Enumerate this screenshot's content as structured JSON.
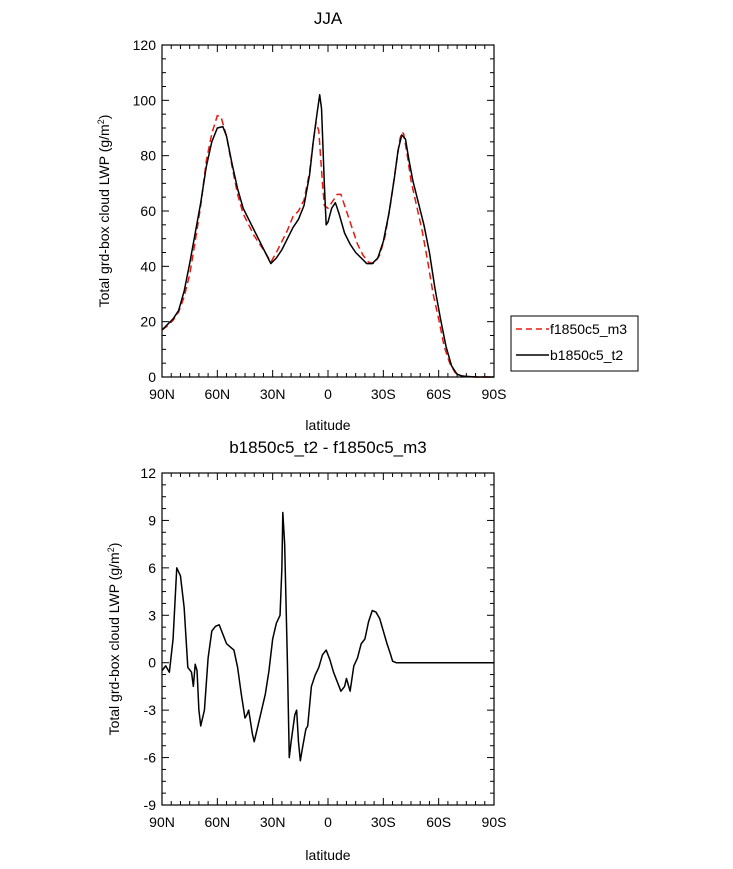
{
  "chart_data": [
    {
      "type": "line",
      "title": "JJA",
      "xlabel": "latitude",
      "ylabel_main": "Total grd-box cloud LWP (g/m",
      "ylabel_sup": "2",
      "ylabel_tail": ")",
      "xlim": [
        90,
        -90
      ],
      "ylim": [
        0,
        120
      ],
      "xticks": [
        90,
        60,
        30,
        0,
        -30,
        -60,
        -90
      ],
      "xtick_labels": [
        "90N",
        "60N",
        "30N",
        "0",
        "30S",
        "60S",
        "90S"
      ],
      "yticks": [
        0,
        20,
        40,
        60,
        80,
        100,
        120
      ],
      "ytick_labels": [
        "0",
        "20",
        "40",
        "60",
        "80",
        "100",
        "120"
      ],
      "legend": [
        "f1850c5_m3",
        "b1850c5_t2"
      ],
      "series": [
        {
          "name": "f1850c5_m3",
          "color": "#e8190f",
          "dash": "dashed",
          "points": [
            [
              90,
              17
            ],
            [
              87,
              18.5
            ],
            [
              84,
              20.5
            ],
            [
              81,
              23.5
            ],
            [
              78,
              29
            ],
            [
              75,
              37
            ],
            [
              72,
              49
            ],
            [
              69,
              62
            ],
            [
              66,
              78
            ],
            [
              63,
              88
            ],
            [
              60,
              94.5
            ],
            [
              58,
              94
            ],
            [
              55,
              87
            ],
            [
              52,
              76
            ],
            [
              49,
              66
            ],
            [
              46,
              59
            ],
            [
              43,
              55
            ],
            [
              40,
              51
            ],
            [
              37,
              48
            ],
            [
              34,
              45
            ],
            [
              31,
              41.5
            ],
            [
              28,
              45
            ],
            [
              25,
              49
            ],
            [
              22,
              53
            ],
            [
              19,
              58
            ],
            [
              16,
              60
            ],
            [
              13,
              64
            ],
            [
              10,
              74
            ],
            [
              8,
              85
            ],
            [
              6.5,
              92
            ],
            [
              5,
              89
            ],
            [
              3,
              70
            ],
            [
              2,
              62
            ],
            [
              0,
              61
            ],
            [
              -3,
              64
            ],
            [
              -5,
              66
            ],
            [
              -7,
              66
            ],
            [
              -10,
              60
            ],
            [
              -13,
              54
            ],
            [
              -16,
              48
            ],
            [
              -19,
              44
            ],
            [
              -22,
              41.5
            ],
            [
              -25,
              41
            ],
            [
              -28,
              44
            ],
            [
              -31,
              51
            ],
            [
              -34,
              63
            ],
            [
              -37,
              77
            ],
            [
              -39,
              86
            ],
            [
              -40,
              88.5
            ],
            [
              -41,
              88
            ],
            [
              -43,
              80
            ],
            [
              -45,
              71
            ],
            [
              -48,
              62
            ],
            [
              -51,
              53
            ],
            [
              -54,
              42
            ],
            [
              -57,
              30
            ],
            [
              -60,
              21
            ],
            [
              -63,
              11
            ],
            [
              -66,
              5
            ],
            [
              -69,
              1.5
            ],
            [
              -72,
              0.5
            ],
            [
              -75,
              0.2
            ],
            [
              -80,
              0
            ],
            [
              -90,
              0
            ]
          ]
        },
        {
          "name": "b1850c5_t2",
          "color": "#000000",
          "dash": "solid",
          "points": [
            [
              90,
              17
            ],
            [
              87,
              19
            ],
            [
              84,
              21
            ],
            [
              81,
              24
            ],
            [
              78,
              31
            ],
            [
              75,
              41
            ],
            [
              72,
              52
            ],
            [
              69,
              63
            ],
            [
              66,
              76
            ],
            [
              63,
              85
            ],
            [
              60,
              90
            ],
            [
              57,
              90.5
            ],
            [
              55,
              87
            ],
            [
              52,
              77
            ],
            [
              49,
              68
            ],
            [
              46,
              61
            ],
            [
              43,
              57
            ],
            [
              40,
              53
            ],
            [
              37,
              49
            ],
            [
              34,
              45
            ],
            [
              31,
              41
            ],
            [
              28,
              43
            ],
            [
              25,
              46
            ],
            [
              22,
              50
            ],
            [
              19,
              54
            ],
            [
              16,
              57
            ],
            [
              13,
              62
            ],
            [
              10,
              73
            ],
            [
              8,
              85
            ],
            [
              6,
              95
            ],
            [
              4.5,
              102
            ],
            [
              3.5,
              97
            ],
            [
              2,
              70
            ],
            [
              1,
              55
            ],
            [
              0,
              56
            ],
            [
              -2,
              61
            ],
            [
              -4,
              63
            ],
            [
              -6,
              59
            ],
            [
              -9,
              52
            ],
            [
              -12,
              48
            ],
            [
              -15,
              45
            ],
            [
              -18,
              43
            ],
            [
              -21,
              41
            ],
            [
              -24,
              41
            ],
            [
              -27,
              43
            ],
            [
              -30,
              49
            ],
            [
              -33,
              59
            ],
            [
              -36,
              72
            ],
            [
              -38,
              82
            ],
            [
              -40,
              87.5
            ],
            [
              -42,
              86
            ],
            [
              -44,
              78
            ],
            [
              -46,
              71
            ],
            [
              -49,
              63
            ],
            [
              -52,
              55
            ],
            [
              -55,
              45
            ],
            [
              -58,
              32
            ],
            [
              -61,
              21
            ],
            [
              -64,
              11
            ],
            [
              -67,
              4
            ],
            [
              -70,
              1
            ],
            [
              -73,
              0.3
            ],
            [
              -80,
              0
            ],
            [
              -90,
              0
            ]
          ]
        }
      ]
    },
    {
      "type": "line",
      "title": "b1850c5_t2 - f1850c5_m3",
      "xlabel": "latitude",
      "ylabel_main": "Total grd-box cloud LWP (g/m",
      "ylabel_sup": "2",
      "ylabel_tail": ")",
      "xlim": [
        90,
        -90
      ],
      "ylim": [
        -9,
        12
      ],
      "xticks": [
        90,
        60,
        30,
        0,
        -30,
        -60,
        -90
      ],
      "xtick_labels": [
        "90N",
        "60N",
        "30N",
        "0",
        "30S",
        "60S",
        "90S"
      ],
      "yticks": [
        -9,
        -6,
        -3,
        0,
        3,
        6,
        9,
        12
      ],
      "ytick_labels": [
        "-9",
        "-6",
        "-3",
        "0",
        "3",
        "6",
        "9",
        "12"
      ],
      "series": [
        {
          "name": "b1850c5_t2 - f1850c5_m3",
          "color": "#000000",
          "dash": "solid",
          "points": [
            [
              90,
              -0.5
            ],
            [
              88,
              -0.2
            ],
            [
              86,
              -0.6
            ],
            [
              84,
              1.5
            ],
            [
              82,
              6
            ],
            [
              80,
              5.5
            ],
            [
              78,
              3.5
            ],
            [
              76,
              -0.3
            ],
            [
              74,
              -0.6
            ],
            [
              73,
              -1.5
            ],
            [
              72,
              -0.1
            ],
            [
              71,
              -0.5
            ],
            [
              70,
              -3
            ],
            [
              69,
              -4
            ],
            [
              67,
              -3
            ],
            [
              65,
              0.3
            ],
            [
              63,
              2
            ],
            [
              61,
              2.3
            ],
            [
              59,
              2.4
            ],
            [
              57,
              1.8
            ],
            [
              55,
              1.2
            ],
            [
              53,
              1
            ],
            [
              51,
              0.8
            ],
            [
              49,
              -0.3
            ],
            [
              47,
              -2
            ],
            [
              45,
              -3.5
            ],
            [
              44,
              -3.3
            ],
            [
              43,
              -3
            ],
            [
              41,
              -4.5
            ],
            [
              40,
              -5
            ],
            [
              38,
              -4
            ],
            [
              36,
              -3
            ],
            [
              34,
              -2
            ],
            [
              32,
              -0.5
            ],
            [
              30,
              1.5
            ],
            [
              28,
              2.5
            ],
            [
              26,
              3
            ],
            [
              25,
              6
            ],
            [
              24.5,
              9.5
            ],
            [
              23.5,
              7.5
            ],
            [
              22,
              0
            ],
            [
              21,
              -6
            ],
            [
              20,
              -5
            ],
            [
              18,
              -3.3
            ],
            [
              17,
              -3
            ],
            [
              16,
              -5
            ],
            [
              15,
              -6.2
            ],
            [
              14,
              -5.5
            ],
            [
              12,
              -4.2
            ],
            [
              11,
              -4
            ],
            [
              9,
              -1.5
            ],
            [
              7,
              -0.8
            ],
            [
              5,
              -0.3
            ],
            [
              3,
              0.5
            ],
            [
              1,
              0.8
            ],
            [
              -1,
              0.2
            ],
            [
              -3,
              -0.6
            ],
            [
              -5,
              -1.2
            ],
            [
              -7,
              -1.8
            ],
            [
              -9,
              -1.5
            ],
            [
              -10,
              -1
            ],
            [
              -12,
              -1.8
            ],
            [
              -14,
              -0.2
            ],
            [
              -16,
              0.3
            ],
            [
              -18,
              1.2
            ],
            [
              -20,
              1.5
            ],
            [
              -22,
              2.6
            ],
            [
              -24,
              3.3
            ],
            [
              -26,
              3.2
            ],
            [
              -28,
              2.8
            ],
            [
              -30,
              2
            ],
            [
              -32,
              1.2
            ],
            [
              -34,
              0.5
            ],
            [
              -35,
              0.1
            ],
            [
              -37,
              0
            ],
            [
              -40,
              0
            ],
            [
              -45,
              0
            ],
            [
              -50,
              0
            ],
            [
              -55,
              0
            ],
            [
              -60,
              0
            ],
            [
              -65,
              0
            ],
            [
              -90,
              0
            ]
          ]
        }
      ]
    }
  ]
}
